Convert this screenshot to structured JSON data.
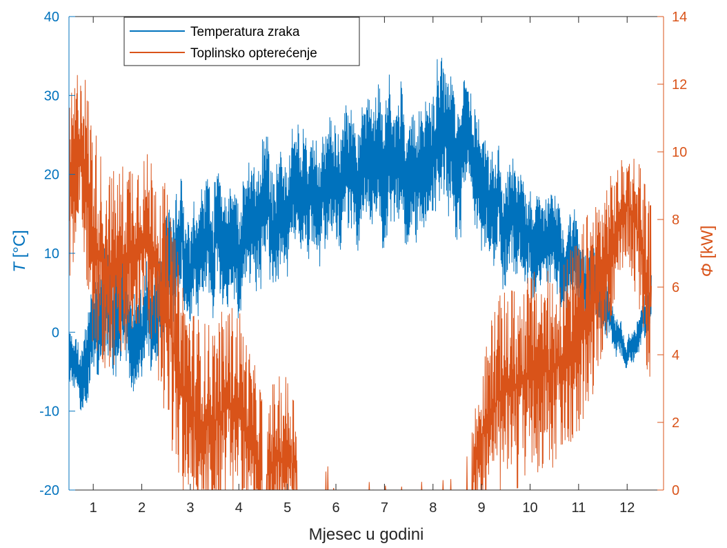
{
  "colors": {
    "temperature": "#0072BD",
    "load": "#D95319",
    "axis": "#262626"
  },
  "chart_data": {
    "type": "line",
    "title": "",
    "xlabel": "Mjesec u godini",
    "ylabel_left": "T [°C]",
    "ylabel_left_symbol": "T",
    "ylabel_left_unit": " [°C]",
    "ylabel_right": "Φ [kW]",
    "ylabel_right_symbol": "Φ",
    "ylabel_right_unit": " [kW]",
    "xlim": [
      0.5,
      12.75
    ],
    "xticks": [
      1,
      2,
      3,
      4,
      5,
      6,
      7,
      8,
      9,
      10,
      11,
      12
    ],
    "xtick_labels": [
      "1",
      "2",
      "3",
      "4",
      "5",
      "6",
      "7",
      "8",
      "9",
      "10",
      "11",
      "12"
    ],
    "ylim_left": [
      -20,
      40
    ],
    "yticks_left": [
      -20,
      -10,
      0,
      10,
      20,
      30,
      40
    ],
    "ytick_labels_left": [
      "-20",
      "-10",
      "0",
      "10",
      "20",
      "30",
      "40"
    ],
    "ylim_right": [
      0,
      14
    ],
    "yticks_right": [
      0,
      2,
      4,
      6,
      8,
      10,
      12,
      14
    ],
    "ytick_labels_right": [
      "0",
      "2",
      "4",
      "6",
      "8",
      "10",
      "12",
      "14"
    ],
    "legend_position": "top-left",
    "series": [
      {
        "name": "Temperatura zraka",
        "axis": "left",
        "description_of_envelope": "daily-oscillating air temperature, monthly mean and swing",
        "x": [
          0.5,
          0.75,
          1.0,
          1.25,
          1.5,
          1.75,
          2.0,
          2.25,
          2.5,
          2.75,
          3.0,
          3.25,
          3.5,
          3.75,
          4.0,
          4.25,
          4.5,
          4.75,
          5.0,
          5.25,
          5.5,
          5.75,
          6.0,
          6.25,
          6.5,
          6.75,
          7.0,
          7.25,
          7.5,
          7.75,
          8.0,
          8.25,
          8.5,
          8.75,
          9.0,
          9.25,
          9.5,
          9.75,
          10.0,
          10.25,
          10.5,
          10.75,
          11.0,
          11.25,
          11.5,
          11.75,
          12.0,
          12.25,
          12.5
        ],
        "y_mean": [
          -3,
          -7,
          2,
          4,
          2,
          1,
          0,
          2,
          5,
          8,
          10,
          12,
          12,
          11,
          11,
          13,
          16,
          15,
          14,
          16,
          17,
          18,
          19,
          20,
          21,
          22,
          23,
          22,
          21,
          21,
          22,
          24,
          22,
          20,
          17,
          15,
          13,
          13,
          12,
          12,
          11,
          10,
          9,
          7,
          5,
          0,
          -3,
          0,
          4
        ],
        "y_amp": [
          4,
          5,
          8,
          9,
          9,
          8,
          7,
          8,
          9,
          9,
          8,
          9,
          9,
          9,
          9,
          9,
          10,
          9,
          9,
          9,
          9,
          9,
          9,
          9,
          9,
          10,
          11,
          10,
          9,
          9,
          10,
          11,
          10,
          9,
          9,
          8,
          8,
          8,
          8,
          7,
          7,
          7,
          6,
          5,
          5,
          3,
          2,
          3,
          4
        ]
      },
      {
        "name": "Toplinsko opterećenje",
        "axis": "right",
        "description_of_envelope": "heating load, monthly level and swing (kW)",
        "x": [
          0.5,
          0.75,
          1.0,
          1.25,
          1.5,
          1.75,
          2.0,
          2.25,
          2.5,
          2.75,
          3.0,
          3.25,
          3.5,
          3.75,
          4.0,
          4.25,
          4.5,
          4.75,
          5.0,
          5.25,
          5.5,
          5.75,
          6.0,
          6.25,
          6.5,
          6.75,
          7.0,
          7.25,
          7.5,
          7.75,
          8.0,
          8.25,
          8.5,
          8.75,
          9.0,
          9.25,
          9.5,
          9.75,
          10.0,
          10.25,
          10.5,
          10.75,
          11.0,
          11.25,
          11.5,
          11.75,
          12.0,
          12.25,
          12.5
        ],
        "y_level": [
          8.5,
          10.5,
          7.5,
          6.5,
          6.5,
          7.0,
          7.5,
          7.0,
          5.5,
          3.5,
          2.5,
          2.0,
          2.0,
          2.5,
          2.5,
          1.5,
          0.5,
          0.8,
          1.0,
          0.5,
          0.3,
          0.1,
          0.0,
          0.0,
          0.0,
          0.0,
          0.0,
          0.0,
          0.0,
          0.0,
          0.0,
          0.0,
          0.0,
          0.2,
          1.5,
          2.5,
          3.0,
          3.0,
          3.5,
          3.5,
          3.5,
          4.0,
          4.5,
          5.5,
          6.5,
          7.5,
          8.5,
          7.5,
          5.5
        ],
        "y_swing": [
          3,
          2.5,
          3.5,
          3,
          3,
          3,
          2.5,
          3,
          3.5,
          3.5,
          3,
          3,
          3,
          3,
          3,
          2.5,
          2.5,
          2.5,
          2.5,
          2,
          1.5,
          1,
          0.5,
          0.5,
          0.5,
          0.5,
          0.3,
          0.3,
          0.5,
          0.5,
          0.5,
          0.3,
          0.5,
          1.5,
          2,
          3,
          3,
          3,
          3,
          3,
          3,
          3,
          3,
          3,
          2.5,
          2,
          1.5,
          2.5,
          3
        ]
      }
    ]
  }
}
